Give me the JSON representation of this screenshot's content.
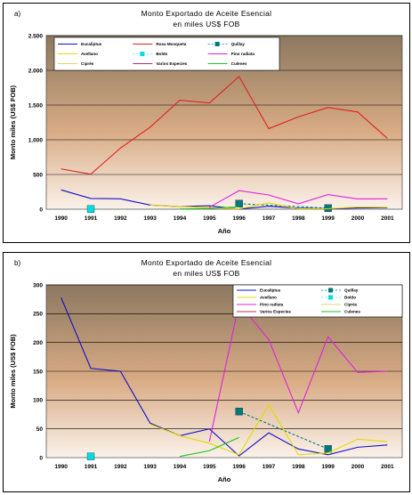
{
  "chart_data": [
    {
      "type": "line",
      "panel_label": "a)",
      "title": "Monto Exportado de Aceite Esencial",
      "subtitle": "en miles US$ FOB",
      "xlabel": "Año",
      "ylabel": "Monto miles (US$ FOB)",
      "categories": [
        "1990",
        "1991",
        "1992",
        "1993",
        "1994",
        "1995",
        "1996",
        "1997",
        "1998",
        "1999",
        "2000",
        "2001"
      ],
      "ylim": [
        0,
        2500
      ],
      "yticks": [
        0,
        500,
        1000,
        1500,
        2000,
        2500
      ],
      "ytick_labels": [
        "0",
        "500",
        "1.000",
        "1.500",
        "2.000",
        "2.500"
      ],
      "grid": true,
      "legend_position": "top",
      "series": [
        {
          "name": "Eucaliptus",
          "color": "#1010c8",
          "style": "line",
          "values": [
            278,
            155,
            150,
            60,
            38,
            50,
            3,
            43,
            15,
            5,
            18,
            22
          ]
        },
        {
          "name": "Rosa Mosqueta",
          "color": "#e02020",
          "style": "line",
          "values": [
            580,
            505,
            880,
            1180,
            1570,
            1530,
            1910,
            1160,
            1330,
            1465,
            1400,
            1020
          ]
        },
        {
          "name": "Quillay",
          "color": "#007a78",
          "style": "dashed-marker",
          "values": [
            null,
            null,
            null,
            null,
            null,
            null,
            80,
            null,
            null,
            15,
            null,
            null
          ]
        },
        {
          "name": "Avellano",
          "color": "#e8d800",
          "style": "line",
          "values": [
            null,
            null,
            null,
            58,
            38,
            25,
            5,
            92,
            5,
            8,
            32,
            28
          ]
        },
        {
          "name": "Boldo",
          "color": "#00dede",
          "style": "marker",
          "values": [
            null,
            2,
            null,
            null,
            null,
            null,
            null,
            null,
            null,
            null,
            null,
            null
          ]
        },
        {
          "name": "Pino radiata",
          "color": "#e020e0",
          "style": "line",
          "values": [
            null,
            null,
            null,
            null,
            null,
            28,
            268,
            205,
            78,
            210,
            148,
            150
          ]
        },
        {
          "name": "Ciprés",
          "color": "#d8d870",
          "style": "line",
          "values": [
            null,
            null,
            null,
            null,
            null,
            null,
            null,
            null,
            null,
            null,
            null,
            null
          ]
        },
        {
          "name": "Varios Especies",
          "color": "#b03060",
          "style": "line",
          "values": [
            null,
            null,
            null,
            null,
            null,
            null,
            null,
            null,
            null,
            null,
            null,
            null
          ]
        },
        {
          "name": "Culenes",
          "color": "#20c020",
          "style": "line",
          "values": [
            null,
            null,
            null,
            null,
            2,
            12,
            35,
            null,
            null,
            null,
            null,
            null
          ]
        }
      ]
    },
    {
      "type": "line",
      "panel_label": "b)",
      "title": "Monto Exportado de Aceite Esencial",
      "subtitle": "en miles US$ FOB",
      "xlabel": "Año",
      "ylabel": "Monto miles (US$ FOB)",
      "categories": [
        "1990",
        "1991",
        "1992",
        "1993",
        "1994",
        "1995",
        "1996",
        "1997",
        "1998",
        "1999",
        "2000",
        "2001"
      ],
      "ylim": [
        0,
        300
      ],
      "yticks": [
        0,
        50,
        100,
        150,
        200,
        250,
        300
      ],
      "ytick_labels": [
        "0",
        "50",
        "100",
        "150",
        "200",
        "250",
        "300"
      ],
      "grid": true,
      "legend_position": "top-right",
      "series": [
        {
          "name": "Eucaliptus",
          "color": "#1010c8",
          "style": "line",
          "values": [
            278,
            155,
            150,
            60,
            38,
            50,
            3,
            43,
            15,
            5,
            18,
            22
          ]
        },
        {
          "name": "Quillay",
          "color": "#007a78",
          "style": "dashed-marker",
          "values": [
            null,
            null,
            null,
            null,
            null,
            null,
            80,
            null,
            null,
            15,
            null,
            null
          ]
        },
        {
          "name": "Avellano",
          "color": "#e8d800",
          "style": "line",
          "values": [
            null,
            null,
            null,
            58,
            38,
            25,
            5,
            92,
            5,
            8,
            32,
            28
          ]
        },
        {
          "name": "Boldo",
          "color": "#00dede",
          "style": "marker",
          "values": [
            null,
            2,
            null,
            null,
            null,
            null,
            null,
            null,
            null,
            null,
            null,
            null
          ]
        },
        {
          "name": "Pino radiata",
          "color": "#e020e0",
          "style": "line",
          "values": [
            null,
            null,
            null,
            null,
            null,
            28,
            268,
            205,
            78,
            210,
            148,
            150
          ]
        },
        {
          "name": "Ciprés",
          "color": "#d8d870",
          "style": "line",
          "values": [
            null,
            null,
            null,
            null,
            null,
            null,
            null,
            null,
            null,
            null,
            null,
            null
          ]
        },
        {
          "name": "Varios Especies",
          "color": "#b03060",
          "style": "line",
          "values": [
            null,
            null,
            null,
            null,
            null,
            null,
            null,
            null,
            null,
            null,
            null,
            null
          ]
        },
        {
          "name": "Culenes",
          "color": "#20c020",
          "style": "line",
          "values": [
            null,
            null,
            null,
            null,
            2,
            12,
            35,
            null,
            null,
            null,
            null,
            null
          ]
        }
      ]
    }
  ]
}
